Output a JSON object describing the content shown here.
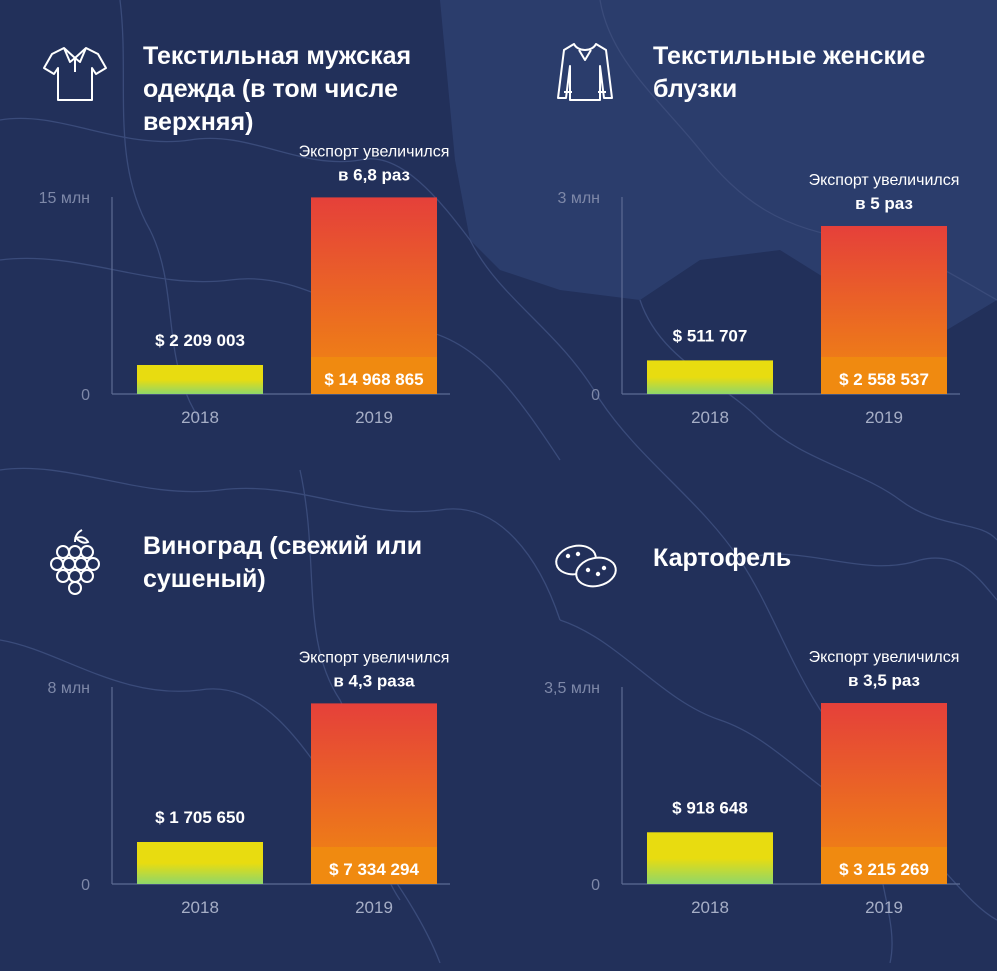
{
  "colors": {
    "background": "#22305a",
    "bar_2018_top": "#e8dc10",
    "bar_2018_bottom": "#8fd76a",
    "bar_2019_top": "#e5403a",
    "bar_2019_bottom": "#f08a10",
    "axis": "#5d6b93"
  },
  "icons": [
    "polo-shirt-icon",
    "blouse-icon",
    "grapes-icon",
    "potatoes-icon"
  ],
  "chart_data": [
    {
      "type": "bar",
      "title": "Текстильная мужская одежда (в том числе верхняя)",
      "icon": "polo-shirt-icon",
      "categories": [
        "2018",
        "2019"
      ],
      "values": [
        2209003,
        14968865
      ],
      "value_labels": [
        "$ 2 209 003",
        "$ 14 968 865"
      ],
      "ylim": [
        0,
        15000000
      ],
      "y_ticks": [
        "0",
        "15 млн"
      ],
      "annotation_line1": "Экспорт увеличился",
      "annotation_line2": "в 6,8 раз"
    },
    {
      "type": "bar",
      "title": "Текстильные женские блузки",
      "icon": "blouse-icon",
      "categories": [
        "2018",
        "2019"
      ],
      "values": [
        511707,
        2558537
      ],
      "value_labels": [
        "$ 511 707",
        "$ 2 558 537"
      ],
      "ylim": [
        0,
        3000000
      ],
      "y_ticks": [
        "0",
        "3 млн"
      ],
      "annotation_line1": "Экспорт увеличился",
      "annotation_line2": "в 5 раз"
    },
    {
      "type": "bar",
      "title": "Виноград (свежий или сушеный)",
      "icon": "grapes-icon",
      "categories": [
        "2018",
        "2019"
      ],
      "values": [
        1705650,
        7334294
      ],
      "value_labels": [
        "$ 1 705 650",
        "$ 7 334 294"
      ],
      "ylim": [
        0,
        8000000
      ],
      "y_ticks": [
        "0",
        "8 млн"
      ],
      "annotation_line1": "Экспорт увеличился",
      "annotation_line2": "в 4,3 раза"
    },
    {
      "type": "bar",
      "title": "Картофель",
      "icon": "potatoes-icon",
      "categories": [
        "2018",
        "2019"
      ],
      "values": [
        918648,
        3215269
      ],
      "value_labels": [
        "$ 918 648",
        "$ 3 215 269"
      ],
      "ylim": [
        0,
        3500000
      ],
      "y_ticks": [
        "0",
        "3,5 млн"
      ],
      "annotation_line1": "Экспорт увеличился",
      "annotation_line2": "в 3,5 раз"
    }
  ]
}
